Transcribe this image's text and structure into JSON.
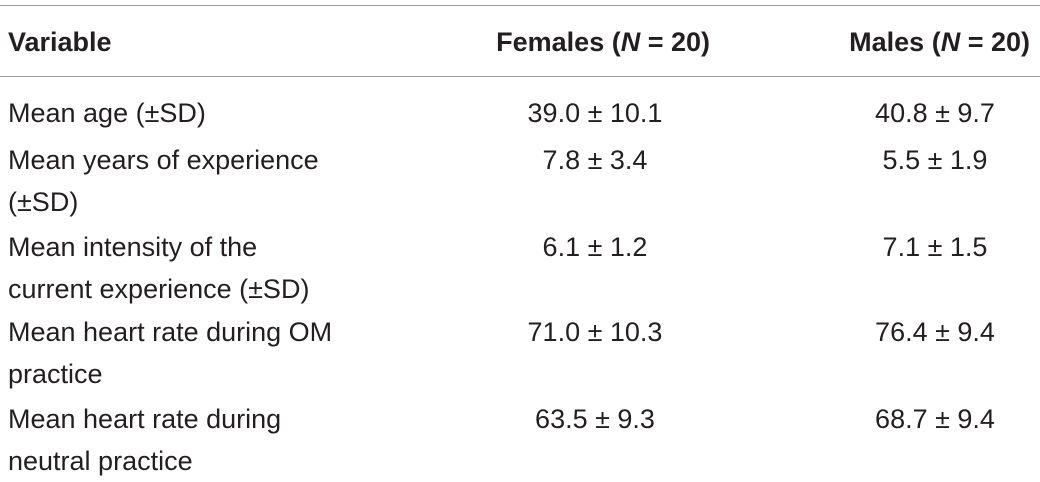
{
  "table": {
    "headers": {
      "variable": "Variable",
      "females_label": "Females (",
      "females_n": "N",
      "females_count": " = 20)",
      "males_label": "Males (",
      "males_n": "N",
      "males_count": " = 20)"
    },
    "rows": [
      {
        "line1": "Mean age (±SD)",
        "line2": "",
        "females": "39.0 ± 10.1",
        "males": "40.8 ± 9.7"
      },
      {
        "line1": "Mean years of experience",
        "line2": "(±SD)",
        "females": "7.8 ± 3.4",
        "males": "5.5 ± 1.9"
      },
      {
        "line1": "Mean intensity of the",
        "line2": "current experience (±SD)",
        "females": "6.1 ± 1.2",
        "males": "7.1 ± 1.5"
      },
      {
        "line1": "Mean heart rate during OM",
        "line2": "practice",
        "females": "71.0 ± 10.3",
        "males": "76.4 ± 9.4"
      },
      {
        "line1": "Mean heart rate during",
        "line2": "neutral practice",
        "females": "63.5 ± 9.3",
        "males": "68.7 ± 9.4"
      }
    ]
  }
}
